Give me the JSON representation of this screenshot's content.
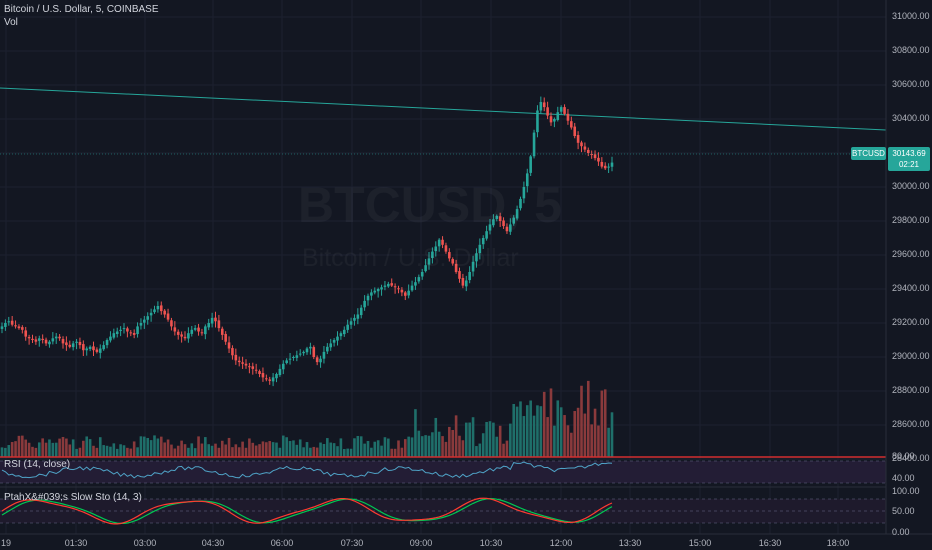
{
  "legend": {
    "symbol_line": "Bitcoin / U.S. Dollar, 5, COINBASE",
    "volume_label": "Vol"
  },
  "watermark": {
    "ticker_interval": "BTCUSD, 5",
    "description": "Bitcoin / U.S. Dollar"
  },
  "price_axis": {
    "ticks": [
      "31000.00",
      "30800.00",
      "30600.00",
      "30400.00",
      "30200.00",
      "30000.00",
      "29800.00",
      "29600.00",
      "29400.00",
      "29200.00",
      "29000.00",
      "28800.00",
      "28600.00",
      "28400.00"
    ],
    "current_price": "30143.69",
    "countdown": "02:21",
    "symbol_tag": "BTCUSD"
  },
  "rsi": {
    "label": "RSI (14, close)",
    "ticks": [
      "80.00",
      "40.00"
    ]
  },
  "stoch": {
    "label": "PtahX&#039;s Slow Sto (14, 3)",
    "ticks": [
      "100.00",
      "50.00",
      "0.00"
    ]
  },
  "time_axis": {
    "ticks": [
      "19",
      "01:30",
      "03:00",
      "04:30",
      "06:00",
      "07:30",
      "09:00",
      "10:30",
      "12:00",
      "13:30",
      "15:00",
      "16:30",
      "18:00"
    ]
  },
  "colors": {
    "background": "#131722",
    "up": "#26a69a",
    "down": "#ef5350",
    "trendline": "#26a69a",
    "rsi_line": "#4fa3c7",
    "stoch_k": "#ff3b30",
    "stoch_d": "#00c853",
    "indicator_band": "#2a1f3a"
  },
  "chart_data": {
    "type": "candlestick",
    "interval_minutes": 5,
    "y_axis_range": [
      28300,
      31050
    ],
    "closes": [
      29180,
      29200,
      29210,
      29190,
      29180,
      29170,
      29160,
      29120,
      29110,
      29100,
      29090,
      29110,
      29100,
      29080,
      29090,
      29110,
      29120,
      29110,
      29080,
      29070,
      29060,
      29080,
      29090,
      29070,
      29040,
      29050,
      29060,
      29040,
      29030,
      29050,
      29070,
      29100,
      29120,
      29140,
      29150,
      29160,
      29170,
      29150,
      29140,
      29130,
      29180,
      29200,
      29220,
      29240,
      29260,
      29280,
      29300,
      29270,
      29250,
      29220,
      29180,
      29150,
      29130,
      29120,
      29110,
      29140,
      29160,
      29170,
      29150,
      29140,
      29180,
      29200,
      29230,
      29210,
      29170,
      29130,
      29090,
      29050,
      29010,
      28980,
      28970,
      28960,
      28950,
      28940,
      28930,
      28920,
      28900,
      28880,
      28870,
      28860,
      28880,
      28900,
      28930,
      28960,
      28980,
      28990,
      29000,
      29010,
      29020,
      29030,
      29050,
      29060,
      29000,
      28970,
      28990,
      29030,
      29060,
      29080,
      29100,
      29120,
      29140,
      29160,
      29190,
      29210,
      29230,
      29250,
      29290,
      29330,
      29360,
      29380,
      29390,
      29400,
      29410,
      29420,
      29430,
      29420,
      29410,
      29400,
      29380,
      29360,
      29390,
      29420,
      29440,
      29470,
      29500,
      29540,
      29580,
      29620,
      29650,
      29690,
      29660,
      29620,
      29580,
      29550,
      29500,
      29460,
      29420,
      29450,
      29500,
      29560,
      29610,
      29660,
      29700,
      29740,
      29780,
      29810,
      29830,
      29800,
      29770,
      29740,
      29780,
      29820,
      29870,
      29930,
      30000,
      30080,
      30180,
      30320,
      30450,
      30500,
      30470,
      30420,
      30380,
      30400,
      30440,
      30470,
      30430,
      30390,
      30350,
      30300,
      30260,
      30240,
      30220,
      30200,
      30190,
      30170,
      30150,
      30120,
      30110,
      30120,
      30143.69
    ],
    "current_close": 30143.69,
    "trendline": {
      "start": 30570,
      "end": 30310
    },
    "indicators": [
      {
        "name": "RSI (14, close)",
        "levels": [
          80,
          40
        ]
      },
      {
        "name": "PtahX&#039;s Slow Sto (14, 3)",
        "levels": [
          100,
          50,
          0
        ]
      }
    ]
  }
}
